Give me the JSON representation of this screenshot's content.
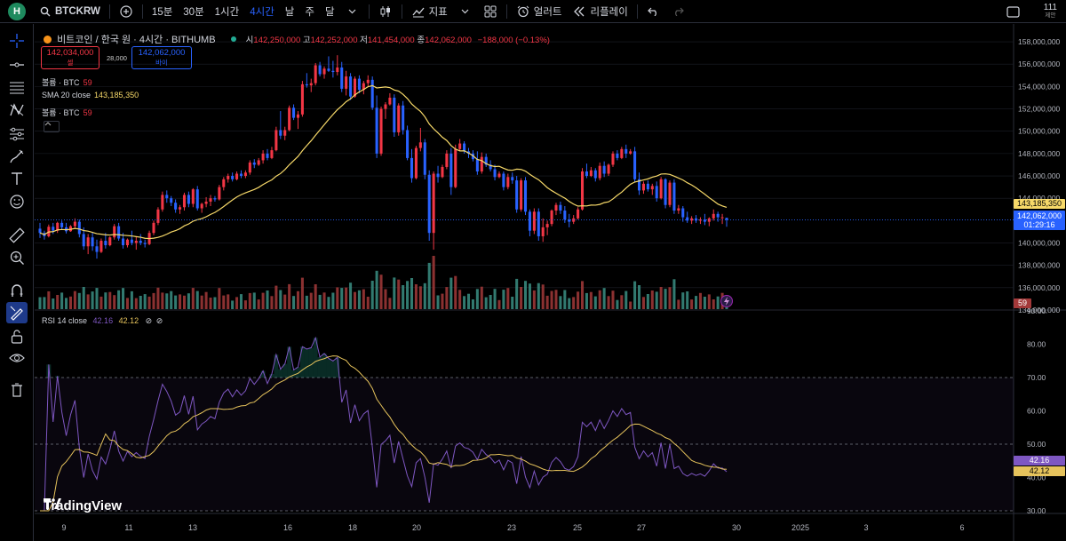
{
  "app": {
    "avatar_letter": "H",
    "symbol": "BTCKRW",
    "intervals": [
      "15분",
      "30분",
      "1시간",
      "4시간",
      "날",
      "주",
      "달"
    ],
    "active_interval": "4시간",
    "indicators_label": "지표",
    "alert_label": "얼러트",
    "replay_label": "리플레이",
    "notif_count": "111",
    "notif_sub": "제안"
  },
  "legend": {
    "title": "비트코인 / 한국 원 · 4시간 · BITHUMB",
    "ohlc": {
      "o_label": "시",
      "o": "142,250,000",
      "h_label": "고",
      "h": "142,252,000",
      "l_label": "저",
      "l": "141,454,000",
      "c_label": "종",
      "c": "142,062,000",
      "change": "−188,000 (−0.13%)"
    },
    "sell_price": "142,034,000",
    "sell_label": "셀",
    "spread": "28,000",
    "buy_price": "142,062,000",
    "buy_label": "바이",
    "vol1_name": "볼륨 · BTC",
    "vol1_val": "59",
    "sma_name": "SMA 20 close",
    "sma_val": "143,185,350",
    "vol2_name": "볼륨 · BTC",
    "vol2_val": "59"
  },
  "rsi_legend": {
    "name": "RSI 14 close",
    "rsi_val": "42.16",
    "ma_val": "42.12"
  },
  "price_axis": {
    "ticks": [
      "158,000,000",
      "156,000,000",
      "154,000,000",
      "152,000,000",
      "150,000,000",
      "148,000,000",
      "146,000,000",
      "144,000,000",
      "140,000,000",
      "138,000,000",
      "136,000,000",
      "134,000,000"
    ],
    "sma_tag": "143,185,350",
    "last_tag": "142,062,000",
    "countdown": "01:29:16",
    "vol_tag": "59"
  },
  "rsi_axis": {
    "ticks": [
      "90.00",
      "80.00",
      "70.00",
      "60.00",
      "50.00",
      "40.00",
      "30.00"
    ],
    "rsi_tag": "42.16",
    "ma_tag": "42.12"
  },
  "time_axis": {
    "ticks": [
      "9",
      "11",
      "13",
      "16",
      "18",
      "20",
      "23",
      "25",
      "27",
      "30",
      "2025",
      "3",
      "6"
    ]
  },
  "watermark": "TradingView",
  "colors": {
    "up": "#f23645",
    "down": "#2962ff",
    "sma": "#f7d969",
    "rsi": "#7e57c2",
    "rsi_ma": "#e6c35c",
    "vol_up": "#3b8f84",
    "vol_down": "#a3393a",
    "grid": "#1c1f28",
    "bg": "#000000"
  },
  "chart_data": {
    "type": "candlestick",
    "unit": "KRW",
    "price_axis_range": [
      134000000,
      158800000
    ],
    "rsi_axis_range": [
      30,
      90
    ],
    "candles_ohlc": [
      [
        141280000,
        141800000,
        140450000,
        140900000
      ],
      [
        140900000,
        141100000,
        140300000,
        140600000
      ],
      [
        140600000,
        141650000,
        140500000,
        141450000
      ],
      [
        141450000,
        141800000,
        140800000,
        141100000
      ],
      [
        141100000,
        141900000,
        140900000,
        141800000
      ],
      [
        141800000,
        142000000,
        141200000,
        141400000
      ],
      [
        141400000,
        141800000,
        140850000,
        141050000
      ],
      [
        141050000,
        141600000,
        141000000,
        141500000
      ],
      [
        141500000,
        142200000,
        141300000,
        141900000
      ],
      [
        141900000,
        142100000,
        140500000,
        140800000
      ],
      [
        140800000,
        141400000,
        139400000,
        139700000
      ],
      [
        139700000,
        140800000,
        139000000,
        140500000
      ],
      [
        140500000,
        141000000,
        139300000,
        139700000
      ],
      [
        139700000,
        140300000,
        138600000,
        139200000
      ],
      [
        139200000,
        140400000,
        139100000,
        140200000
      ],
      [
        140200000,
        140900000,
        139500000,
        139800000
      ],
      [
        139800000,
        140600000,
        139700000,
        140500000
      ],
      [
        140500000,
        141700000,
        140300000,
        141500000
      ],
      [
        141500000,
        141800000,
        140200000,
        140400000
      ],
      [
        140400000,
        140900000,
        139500000,
        139800000
      ],
      [
        139800000,
        140400000,
        139600000,
        140300000
      ],
      [
        140300000,
        141100000,
        139800000,
        140000000
      ],
      [
        140000000,
        140600000,
        139400000,
        140200000
      ],
      [
        140200000,
        140800000,
        139800000,
        140000000
      ],
      [
        140000000,
        140300000,
        139600000,
        139900000
      ],
      [
        139900000,
        141100000,
        139800000,
        140900000
      ],
      [
        140900000,
        142000000,
        140700000,
        141800000
      ],
      [
        141800000,
        143200000,
        141600000,
        143000000
      ],
      [
        143000000,
        144600000,
        142800000,
        144300000
      ],
      [
        144300000,
        144700000,
        143600000,
        144000000
      ],
      [
        144000000,
        144200000,
        143300000,
        143600000
      ],
      [
        143600000,
        143900000,
        142700000,
        143000000
      ],
      [
        143000000,
        143400000,
        142600000,
        143200000
      ],
      [
        143200000,
        144500000,
        142900000,
        144300000
      ],
      [
        144300000,
        144600000,
        143200000,
        143500000
      ],
      [
        143500000,
        144900000,
        143200000,
        144800000
      ],
      [
        144800000,
        145100000,
        142900000,
        143100000
      ],
      [
        143100000,
        143600000,
        142700000,
        143500000
      ],
      [
        143500000,
        144100000,
        143200000,
        143700000
      ],
      [
        143700000,
        144300000,
        143300000,
        144000000
      ],
      [
        144000000,
        144200000,
        143700000,
        143900000
      ],
      [
        143900000,
        145200000,
        143800000,
        145000000
      ],
      [
        145000000,
        145900000,
        144700000,
        145700000
      ],
      [
        145700000,
        146200000,
        145400000,
        146000000
      ],
      [
        146000000,
        146300000,
        145500000,
        145700000
      ],
      [
        145700000,
        146400000,
        145600000,
        146200000
      ],
      [
        146200000,
        146500000,
        145800000,
        146000000
      ],
      [
        146000000,
        146500000,
        145800000,
        146300000
      ],
      [
        146300000,
        147400000,
        146100000,
        147200000
      ],
      [
        147200000,
        147500000,
        146700000,
        147000000
      ],
      [
        147000000,
        147600000,
        146900000,
        147400000
      ],
      [
        147400000,
        148300000,
        147100000,
        148000000
      ],
      [
        148000000,
        148400000,
        147400000,
        147600000
      ],
      [
        147600000,
        148600000,
        147500000,
        148300000
      ],
      [
        148300000,
        150400000,
        148200000,
        150100000
      ],
      [
        150100000,
        151800000,
        149300000,
        149600000
      ],
      [
        149600000,
        150400000,
        149200000,
        150100000
      ],
      [
        150100000,
        152300000,
        150000000,
        152100000
      ],
      [
        152100000,
        152400000,
        151000000,
        151200000
      ],
      [
        151200000,
        151800000,
        150200000,
        151500000
      ],
      [
        151500000,
        154500000,
        151300000,
        154200000
      ],
      [
        154200000,
        155200000,
        153900000,
        154100000
      ],
      [
        154100000,
        154700000,
        153500000,
        154300000
      ],
      [
        154300000,
        156100000,
        154100000,
        155900000
      ],
      [
        155900000,
        156200000,
        154900000,
        155100000
      ],
      [
        155100000,
        155800000,
        154700000,
        155600000
      ],
      [
        155600000,
        156700000,
        155300000,
        155400000
      ],
      [
        155400000,
        156300000,
        154800000,
        155300000
      ],
      [
        155300000,
        156800000,
        155000000,
        155700000
      ],
      [
        155700000,
        156200000,
        153500000,
        153800000
      ],
      [
        153800000,
        155400000,
        153200000,
        154900000
      ],
      [
        154900000,
        155200000,
        152800000,
        153100000
      ],
      [
        153100000,
        154900000,
        153000000,
        154700000
      ],
      [
        154700000,
        155000000,
        153400000,
        153700000
      ],
      [
        153700000,
        154500000,
        153300000,
        154300000
      ],
      [
        154300000,
        155000000,
        154000000,
        154600000
      ],
      [
        154600000,
        154900000,
        151900000,
        152100000
      ],
      [
        152100000,
        153200000,
        147600000,
        148000000
      ],
      [
        148000000,
        152200000,
        147800000,
        152000000
      ],
      [
        152000000,
        152600000,
        151100000,
        152400000
      ],
      [
        152400000,
        153400000,
        152300000,
        153000000
      ],
      [
        153000000,
        153300000,
        149500000,
        149900000
      ],
      [
        149900000,
        152500000,
        149600000,
        152300000
      ],
      [
        152300000,
        152700000,
        149700000,
        150100000
      ],
      [
        150100000,
        150500000,
        147400000,
        147600000
      ],
      [
        147600000,
        148400000,
        145400000,
        145800000
      ],
      [
        145800000,
        148700000,
        145700000,
        148500000
      ],
      [
        148500000,
        150300000,
        148200000,
        149000000
      ],
      [
        149000000,
        149300000,
        145700000,
        146100000
      ],
      [
        146100000,
        146500000,
        140200000,
        140900000
      ],
      [
        140900000,
        146400000,
        139400000,
        146200000
      ],
      [
        146200000,
        146900000,
        145400000,
        145900000
      ],
      [
        145900000,
        147000000,
        145800000,
        146800000
      ],
      [
        146800000,
        148300000,
        146600000,
        148000000
      ],
      [
        148000000,
        148500000,
        144300000,
        145000000
      ],
      [
        145000000,
        148800000,
        144900000,
        148400000
      ],
      [
        148400000,
        149300000,
        148200000,
        148900000
      ],
      [
        148900000,
        149100000,
        148000000,
        148200000
      ],
      [
        148200000,
        148500000,
        147600000,
        148000000
      ],
      [
        148000000,
        148300000,
        147300000,
        147500000
      ],
      [
        147500000,
        148200000,
        146100000,
        146400000
      ],
      [
        146400000,
        148100000,
        146200000,
        147700000
      ],
      [
        147700000,
        148000000,
        146800000,
        147000000
      ],
      [
        147000000,
        147400000,
        146400000,
        146600000
      ],
      [
        146600000,
        147000000,
        145600000,
        145900000
      ],
      [
        145900000,
        146400000,
        145800000,
        146200000
      ],
      [
        146200000,
        146400000,
        144700000,
        145000000
      ],
      [
        145000000,
        146200000,
        144800000,
        145900000
      ],
      [
        145900000,
        146300000,
        145300000,
        145600000
      ],
      [
        145600000,
        146000000,
        142700000,
        143000000
      ],
      [
        143000000,
        145800000,
        142800000,
        145600000
      ],
      [
        145600000,
        145900000,
        142500000,
        142800000
      ],
      [
        142800000,
        143000000,
        140600000,
        141100000
      ],
      [
        141100000,
        143100000,
        140800000,
        142800000
      ],
      [
        142800000,
        143100000,
        140200000,
        140600000
      ],
      [
        140600000,
        142200000,
        140100000,
        141400000
      ],
      [
        141400000,
        142000000,
        140700000,
        141700000
      ],
      [
        141700000,
        143000000,
        141500000,
        142900000
      ],
      [
        142900000,
        143600000,
        142500000,
        143400000
      ],
      [
        143400000,
        143700000,
        142600000,
        142900000
      ],
      [
        142900000,
        143300000,
        141800000,
        142100000
      ],
      [
        142100000,
        142600000,
        141400000,
        141900000
      ],
      [
        141900000,
        142500000,
        141700000,
        142200000
      ],
      [
        142200000,
        143200000,
        142100000,
        143000000
      ],
      [
        143000000,
        146700000,
        142900000,
        146400000
      ],
      [
        146400000,
        147100000,
        145800000,
        146000000
      ],
      [
        146000000,
        146800000,
        145900000,
        146500000
      ],
      [
        146500000,
        146700000,
        145500000,
        145800000
      ],
      [
        145800000,
        147200000,
        145600000,
        146900000
      ],
      [
        146900000,
        147300000,
        145900000,
        146200000
      ],
      [
        146200000,
        147100000,
        146000000,
        147000000
      ],
      [
        147000000,
        148200000,
        146800000,
        148000000
      ],
      [
        148000000,
        148300000,
        147400000,
        147600000
      ],
      [
        147600000,
        148600000,
        147500000,
        148400000
      ],
      [
        148400000,
        148800000,
        147600000,
        148000000
      ],
      [
        148000000,
        148400000,
        147900000,
        148200000
      ],
      [
        148200000,
        148600000,
        145400000,
        145700000
      ],
      [
        145700000,
        146300000,
        144300000,
        144700000
      ],
      [
        144700000,
        145500000,
        144400000,
        145300000
      ],
      [
        145300000,
        145600000,
        144600000,
        144800000
      ],
      [
        144800000,
        145300000,
        144300000,
        145100000
      ],
      [
        145100000,
        145500000,
        143700000,
        144000000
      ],
      [
        144000000,
        145900000,
        143900000,
        145700000
      ],
      [
        145700000,
        145800000,
        143100000,
        143400000
      ],
      [
        143400000,
        145600000,
        143200000,
        145400000
      ],
      [
        145400000,
        145700000,
        142600000,
        142900000
      ],
      [
        142900000,
        143400000,
        142600000,
        143100000
      ],
      [
        143100000,
        143300000,
        141900000,
        142300000
      ],
      [
        142300000,
        142800000,
        141800000,
        142000000
      ],
      [
        142000000,
        142400000,
        141700000,
        142200000
      ],
      [
        142200000,
        142500000,
        141800000,
        142000000
      ],
      [
        142000000,
        142300000,
        141700000,
        142100000
      ],
      [
        142100000,
        142600000,
        141600000,
        141900000
      ],
      [
        141900000,
        142300000,
        141500000,
        142200000
      ],
      [
        142200000,
        143000000,
        142000000,
        142600000
      ],
      [
        142600000,
        142800000,
        141900000,
        142300000
      ],
      [
        142300000,
        142600000,
        141700000,
        142300000
      ],
      [
        142250000,
        142252000,
        141454000,
        142062000
      ]
    ],
    "sma20_last": 143185350,
    "last_price": 142062000,
    "rsi_last": 42.16,
    "rsi_ma_last": 42.12,
    "rsi_bands": [
      30,
      50,
      70
    ],
    "x_ticks": [
      "9",
      "11",
      "13",
      "16",
      "18",
      "20",
      "23",
      "25",
      "27",
      "30",
      "2025",
      "3",
      "6"
    ]
  }
}
